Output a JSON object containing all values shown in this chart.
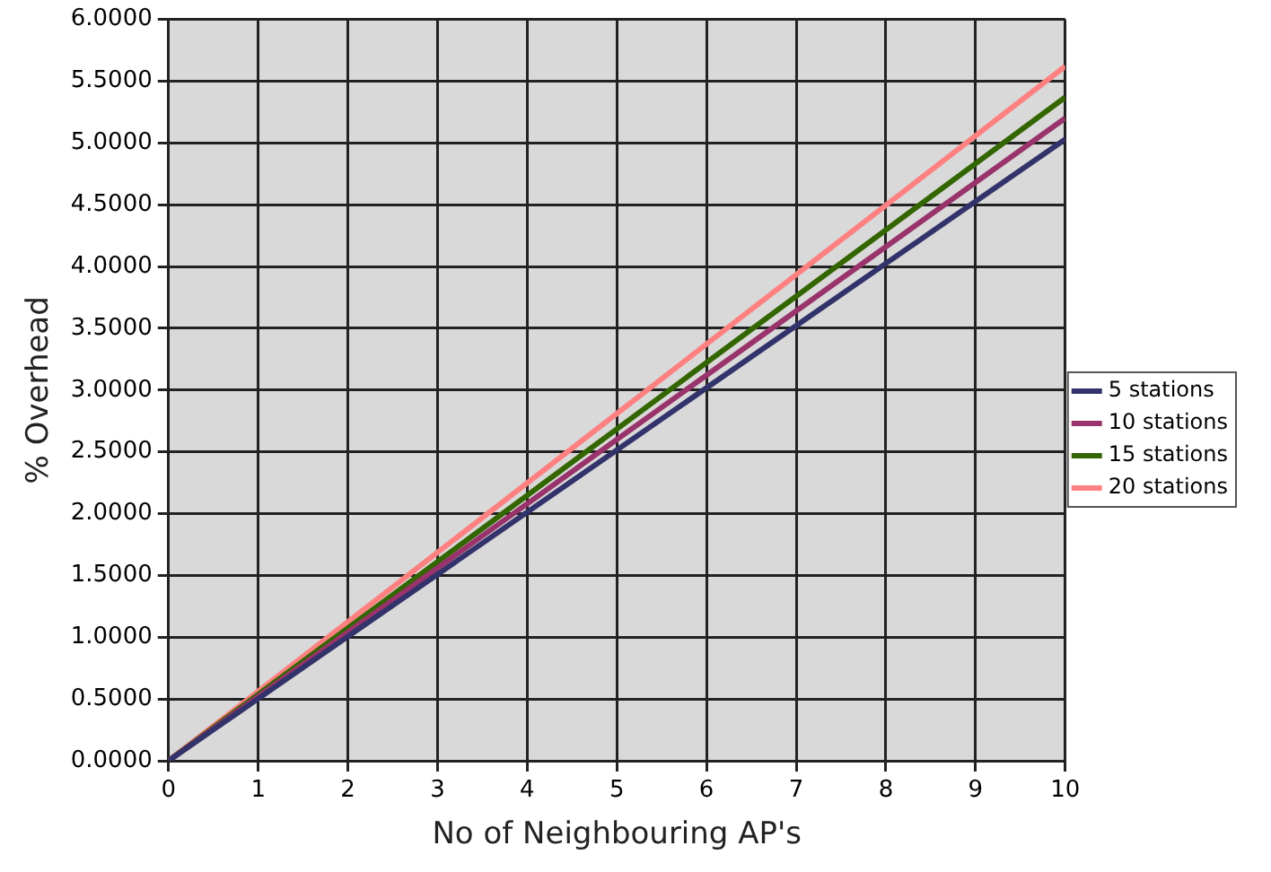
{
  "chart_data": {
    "type": "line",
    "xlabel": "No of Neighbouring AP's",
    "ylabel": "% Overhead",
    "x": [
      0,
      10
    ],
    "series": [
      {
        "name": "5 stations",
        "color": "#33336b",
        "values": [
          0,
          5.03
        ]
      },
      {
        "name": "10 stations",
        "color": "#99336b",
        "values": [
          0,
          5.2
        ]
      },
      {
        "name": "15 stations",
        "color": "#336600",
        "values": [
          0,
          5.37
        ]
      },
      {
        "name": "20 stations",
        "color": "#ff8080",
        "values": [
          0,
          5.62
        ]
      }
    ],
    "xlim": [
      0,
      10
    ],
    "xticks": [
      0,
      1,
      2,
      3,
      4,
      5,
      6,
      7,
      8,
      9,
      10
    ],
    "ylim": [
      0,
      6
    ],
    "yticks": [
      {
        "value": 0,
        "label": "0.0000"
      },
      {
        "value": 0.5,
        "label": "0.5000"
      },
      {
        "value": 1,
        "label": "1.0000"
      },
      {
        "value": 1.5,
        "label": "1.5000"
      },
      {
        "value": 2,
        "label": "2.0000"
      },
      {
        "value": 2.5,
        "label": "2.5000"
      },
      {
        "value": 3,
        "label": "3.0000"
      },
      {
        "value": 3.5,
        "label": "3.5000"
      },
      {
        "value": 4,
        "label": "4.0000"
      },
      {
        "value": 4.5,
        "label": "4.5000"
      },
      {
        "value": 5,
        "label": "5.0000"
      },
      {
        "value": 5.5,
        "label": "5.5000"
      },
      {
        "value": 6,
        "label": "6.0000"
      }
    ],
    "grid": true,
    "legend": "right",
    "marker": "none",
    "line_style": "solid"
  }
}
